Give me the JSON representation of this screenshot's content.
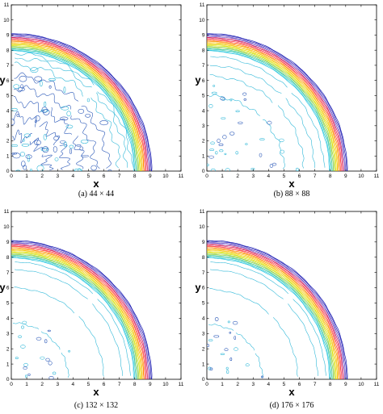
{
  "chart_data": [
    {
      "type": "contour",
      "caption": "(a)  44 × 44",
      "xlabel": "x",
      "ylabel": "y",
      "xlim": [
        0,
        11
      ],
      "ylim": [
        0,
        11
      ],
      "xticks": [
        "0",
        "1",
        "2",
        "3",
        "4",
        "5",
        "6",
        "7",
        "8",
        "9",
        "10",
        "11"
      ],
      "yticks": [
        "0",
        "1",
        "2",
        "3",
        "4",
        "5",
        "6",
        "7",
        "8",
        "9",
        "10",
        "11"
      ],
      "front_radius_outer": 9.1,
      "front_radius_inner": 8.0,
      "interior_levels": [
        7.8,
        7.5,
        7.0,
        6.3,
        5.5,
        4.6,
        3.6,
        2.4
      ],
      "interior_noise": "high"
    },
    {
      "type": "contour",
      "caption": "(b)  88 × 88",
      "xlabel": "x",
      "ylabel": "y",
      "xlim": [
        0,
        11
      ],
      "ylim": [
        0,
        11
      ],
      "xticks": [
        "0",
        "1",
        "2",
        "3",
        "4",
        "5",
        "6",
        "7",
        "8",
        "9",
        "10",
        "11"
      ],
      "yticks": [
        "0",
        "1",
        "2",
        "3",
        "4",
        "5",
        "6",
        "7",
        "8",
        "9",
        "10",
        "11"
      ],
      "front_radius_outer": 9.1,
      "front_radius_inner": 8.0,
      "interior_levels": [
        7.6,
        7.0,
        6.3,
        5.0
      ],
      "interior_noise": "medium"
    },
    {
      "type": "contour",
      "caption": "(c)  132 × 132",
      "xlabel": "x",
      "ylabel": "y",
      "xlim": [
        0,
        11
      ],
      "ylim": [
        0,
        11
      ],
      "xticks": [
        "0",
        "1",
        "2",
        "3",
        "4",
        "5",
        "6",
        "7",
        "8",
        "9",
        "10",
        "11"
      ],
      "yticks": [
        "0",
        "1",
        "2",
        "3",
        "4",
        "5",
        "6",
        "7",
        "8",
        "9",
        "10",
        "11"
      ],
      "front_radius_outer": 9.1,
      "front_radius_inner": 8.0,
      "interior_levels": [
        7.7,
        7.2,
        6.0,
        3.7
      ],
      "interior_noise": "low"
    },
    {
      "type": "contour",
      "caption": "(d)  176 × 176",
      "xlabel": "x",
      "ylabel": "y",
      "xlim": [
        0,
        11
      ],
      "ylim": [
        0,
        11
      ],
      "xticks": [
        "0",
        "1",
        "2",
        "3",
        "4",
        "5",
        "6",
        "7",
        "8",
        "9",
        "10",
        "11"
      ],
      "yticks": [
        "0",
        "1",
        "2",
        "3",
        "4",
        "5",
        "6",
        "7",
        "8",
        "9",
        "10",
        "11"
      ],
      "front_radius_outer": 9.1,
      "front_radius_inner": 8.0,
      "interior_levels": [
        7.7,
        7.2,
        5.9,
        3.6
      ],
      "interior_noise": "low"
    }
  ],
  "colors": {
    "band": [
      "#1f1fb4",
      "#6a4bc4",
      "#d02060",
      "#ff4040",
      "#ff8c00",
      "#f5c400",
      "#d8e000",
      "#8ed040",
      "#3cc8a0",
      "#30c8e0"
    ],
    "interior": "#30b8d8",
    "deep": "#2a58b8"
  }
}
